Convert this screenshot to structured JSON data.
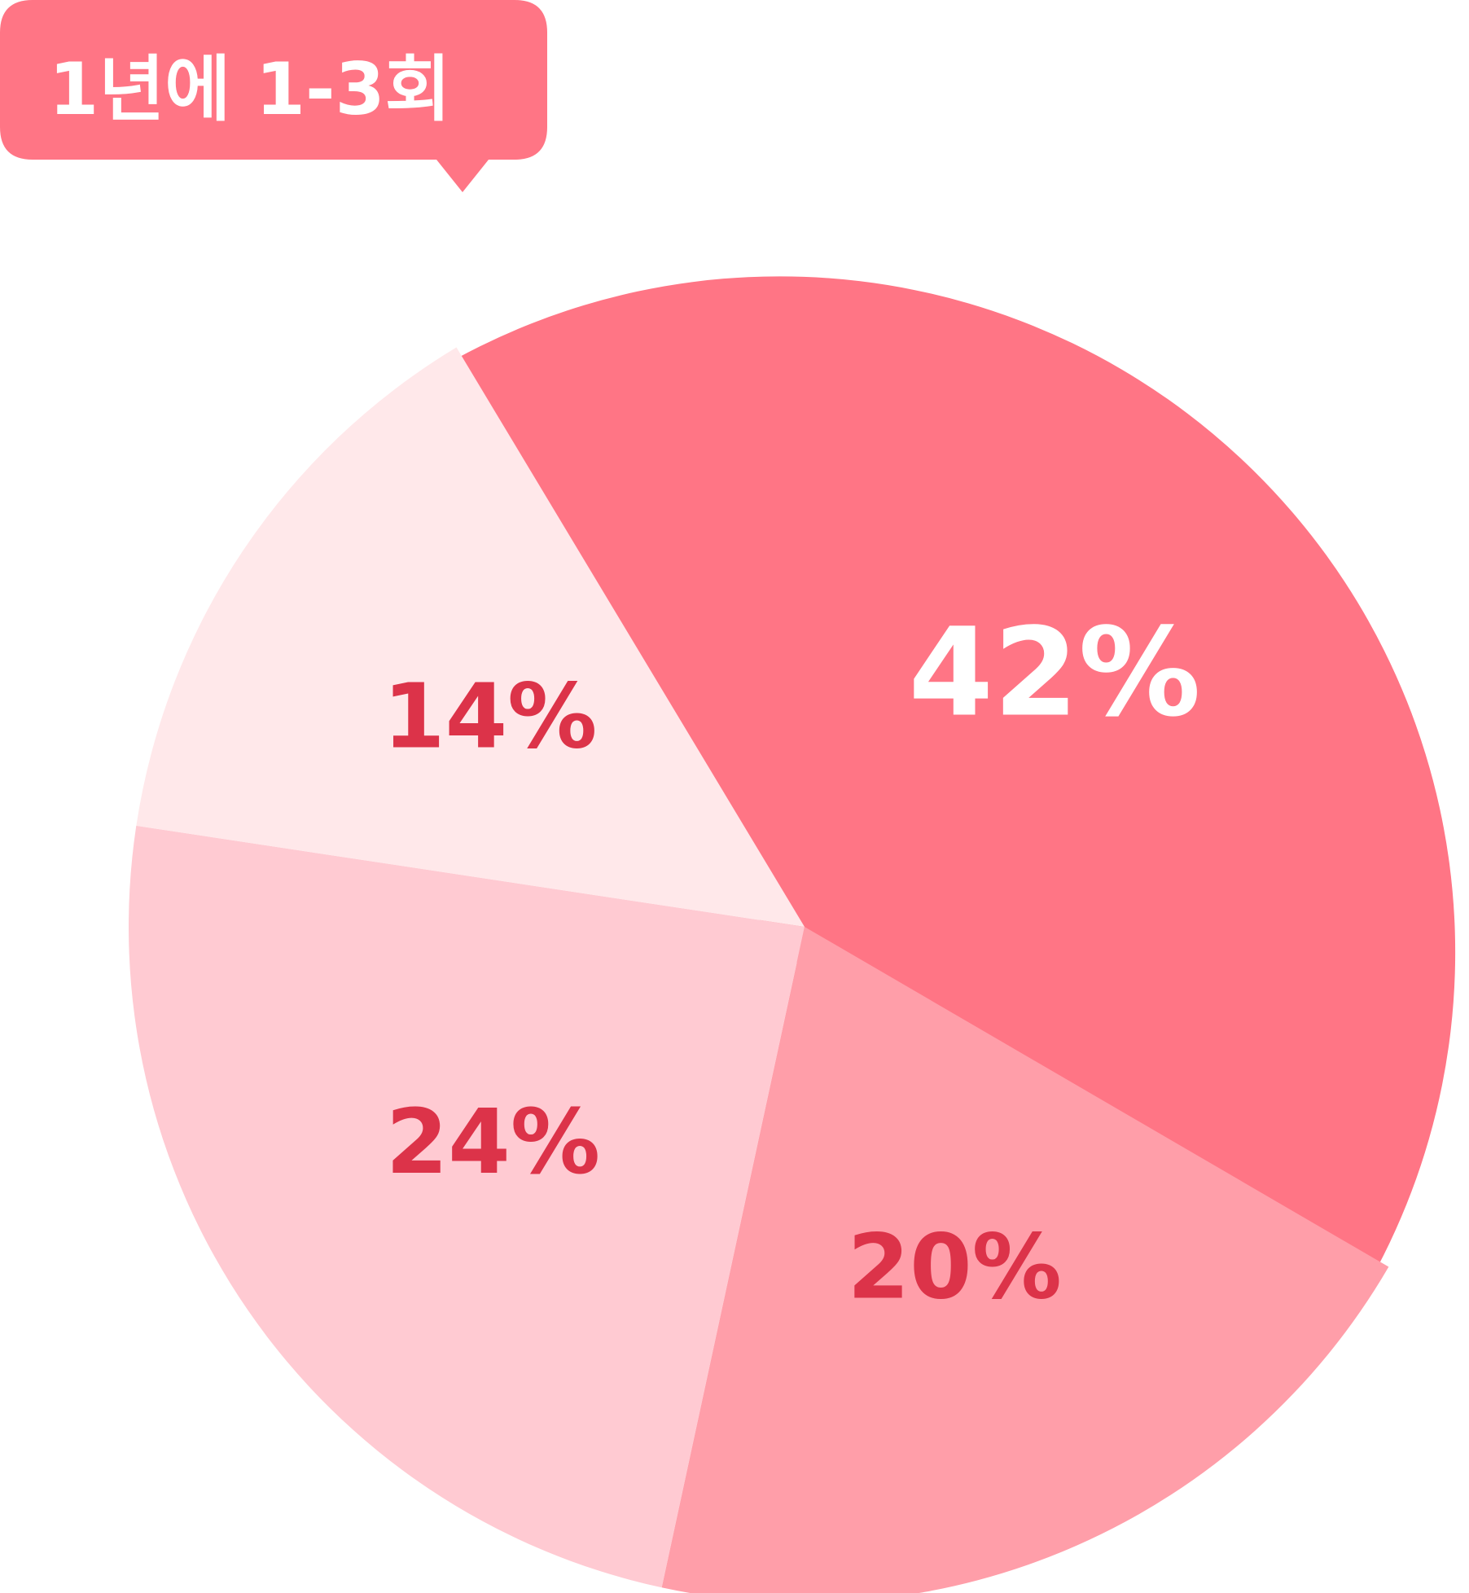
{
  "chart_data": {
    "type": "pie",
    "categories": [
      "1년에 1-3회",
      "",
      "",
      ""
    ],
    "values": [
      42,
      20,
      24,
      14
    ],
    "labels": [
      "42%",
      "20%",
      "24%",
      "14%"
    ],
    "colors": [
      "#FF7585",
      "#FF9EA9",
      "#FFCAD2",
      "#FFE8EA"
    ],
    "label_colors": [
      "#FFFFFF",
      "#DC3349",
      "#DC3349",
      "#DC3349"
    ],
    "highlighted": "1년에 1-3회",
    "start_angle_deg": 239,
    "exploded_slice": 0
  },
  "callout": {
    "text": "1년에 1-3회",
    "color": "#FF7585",
    "text_color": "#FFFFFF"
  }
}
